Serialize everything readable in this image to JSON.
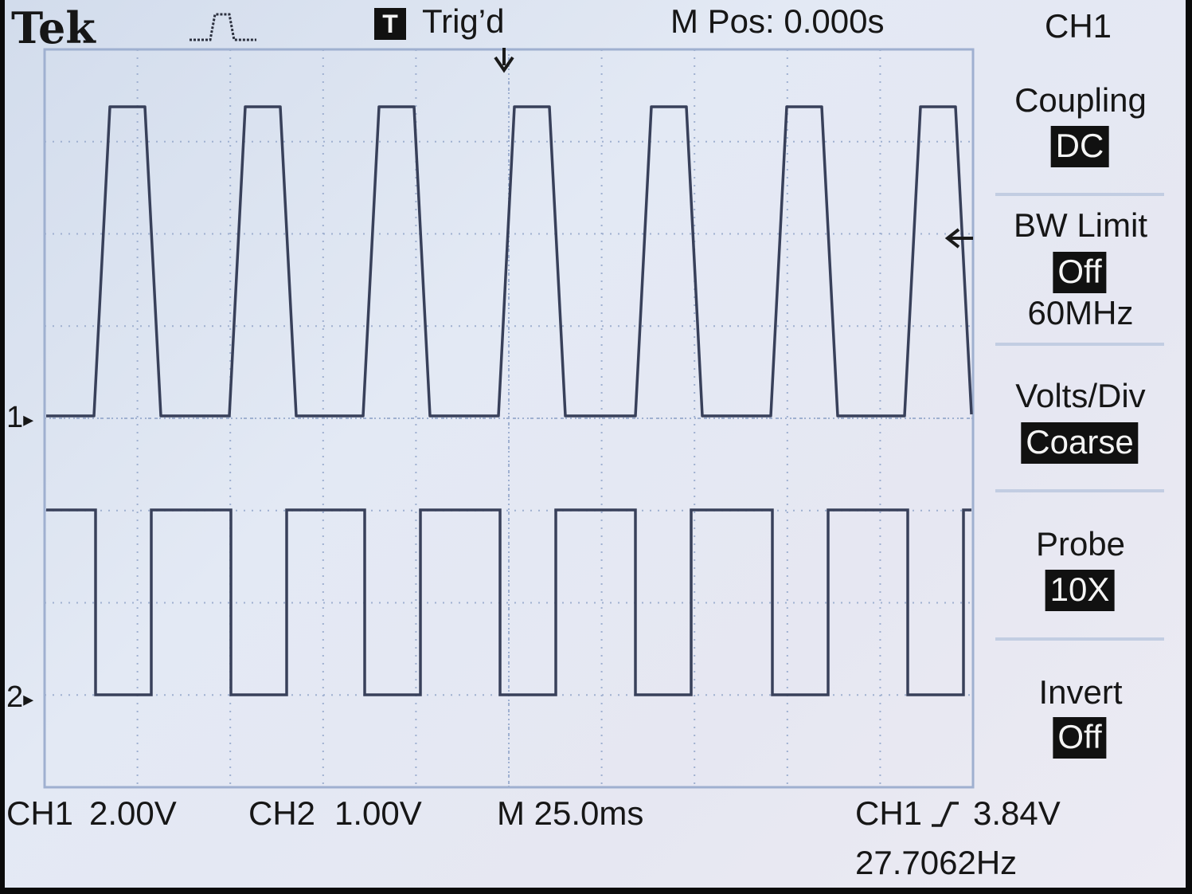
{
  "header": {
    "brand": "Tek",
    "trigger_icon_letter": "T",
    "trigger_status": "Trig’d",
    "position": "M Pos: 0.000s",
    "channel": "CH1"
  },
  "side_menu": [
    {
      "title": "Coupling",
      "value": "DC"
    },
    {
      "title": "BW Limit",
      "value": "Off",
      "extra": "60MHz"
    },
    {
      "title": "Volts/Div",
      "value": "Coarse"
    },
    {
      "title": "Probe",
      "value": "10X"
    },
    {
      "title": "Invert",
      "value": "Off"
    }
  ],
  "footer": {
    "ch1_label": "CH1",
    "ch1_scale": "2.00V",
    "ch2_label": "CH2",
    "ch2_scale": "1.00V",
    "timebase": "M 25.0ms",
    "trigger_source": "CH1",
    "trigger_level": "3.84V",
    "frequency": "27.7062Hz"
  },
  "markers": {
    "ch1": "1",
    "ch2": "2"
  },
  "colors": {
    "trace": "#38405a",
    "grid": "#9fb0d0",
    "screen": "#e3e9f4"
  }
}
